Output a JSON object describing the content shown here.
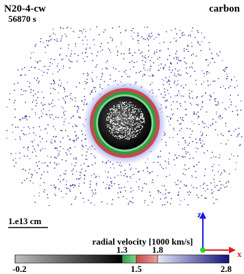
{
  "header": {
    "title": "N20-4-cw",
    "time": "56870 s",
    "species": "carbon"
  },
  "scale_bar": "1.e13 cm",
  "colorbar": {
    "label": "radial velocity [1000 km/s]",
    "lim": [
      -0.2,
      2.8
    ],
    "ticks": [
      -0.2,
      1.3,
      1.5,
      1.8,
      2.8
    ]
  },
  "axes": {
    "z": "z",
    "x": "x"
  }
}
